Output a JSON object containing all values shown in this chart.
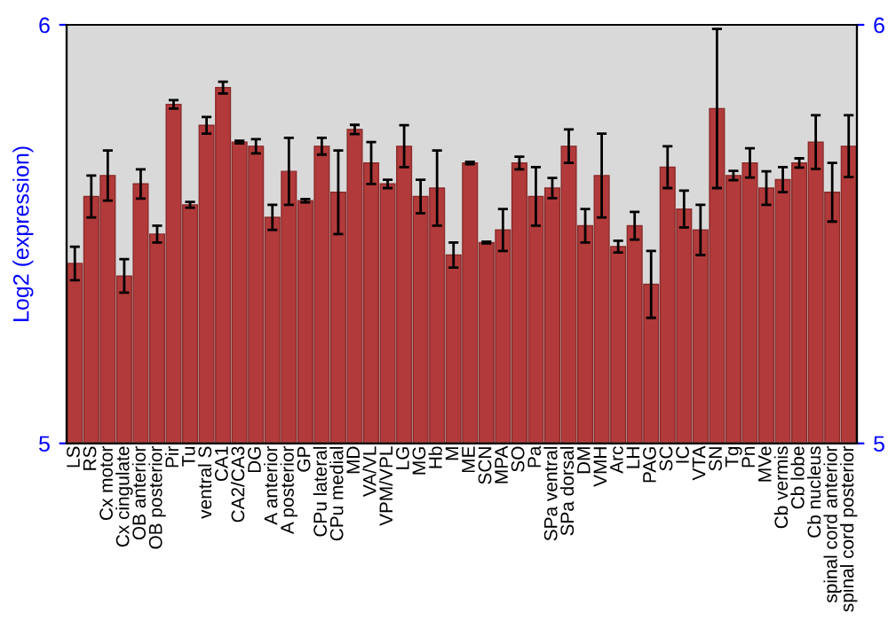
{
  "chart_data": {
    "type": "bar",
    "ylabel": "Log2 (expression)",
    "categories": [
      "LS",
      "RS",
      "Cx motor",
      "Cx cingulate",
      "OB anterior",
      "OB posterior",
      "Pir",
      "Tu",
      "ventral S",
      "CA1",
      "CA2/CA3",
      "DG",
      "A anterior",
      "A posterior",
      "GP",
      "CPu lateral",
      "CPu medial",
      "MD",
      "VA/VL",
      "VPM/VPL",
      "LG",
      "MG",
      "Hb",
      "M",
      "ME",
      "SCN",
      "MPA",
      "SO",
      "Pa",
      "SPa ventral",
      "SPa dorsal",
      "DM",
      "VMH",
      "Arc",
      "LH",
      "PAG",
      "SC",
      "IC",
      "VTA",
      "SN",
      "Tg",
      "Pn",
      "MVe",
      "Cb vermis",
      "Cb lobe",
      "Cb nucleus",
      "spinal cord anterior",
      "spinal cord posterior"
    ],
    "values": [
      5.43,
      5.59,
      5.64,
      5.4,
      5.62,
      5.5,
      5.81,
      5.57,
      5.76,
      5.85,
      5.72,
      5.71,
      5.54,
      5.65,
      5.58,
      5.71,
      5.6,
      5.75,
      5.67,
      5.62,
      5.71,
      5.59,
      5.61,
      5.45,
      5.67,
      5.48,
      5.51,
      5.67,
      5.59,
      5.61,
      5.71,
      5.52,
      5.64,
      5.47,
      5.52,
      5.38,
      5.66,
      5.56,
      5.51,
      5.8,
      5.64,
      5.67,
      5.61,
      5.63,
      5.67,
      5.72,
      5.6,
      5.71
    ],
    "errors": [
      0.04,
      0.05,
      0.06,
      0.04,
      0.035,
      0.02,
      0.01,
      0.007,
      0.02,
      0.014,
      0.003,
      0.017,
      0.03,
      0.08,
      0.004,
      0.02,
      0.1,
      0.011,
      0.05,
      0.01,
      0.05,
      0.04,
      0.09,
      0.03,
      0.003,
      0.002,
      0.05,
      0.015,
      0.07,
      0.024,
      0.04,
      0.04,
      0.1,
      0.014,
      0.033,
      0.08,
      0.05,
      0.044,
      0.06,
      0.19,
      0.011,
      0.035,
      0.04,
      0.03,
      0.011,
      0.064,
      0.07,
      0.074
    ],
    "color": "#b23a3a",
    "ylim": [
      5,
      6
    ],
    "yticks": [
      5,
      6
    ],
    "y2lim": [
      5,
      6
    ],
    "y2ticks": [
      5,
      6
    ],
    "grid": false
  }
}
